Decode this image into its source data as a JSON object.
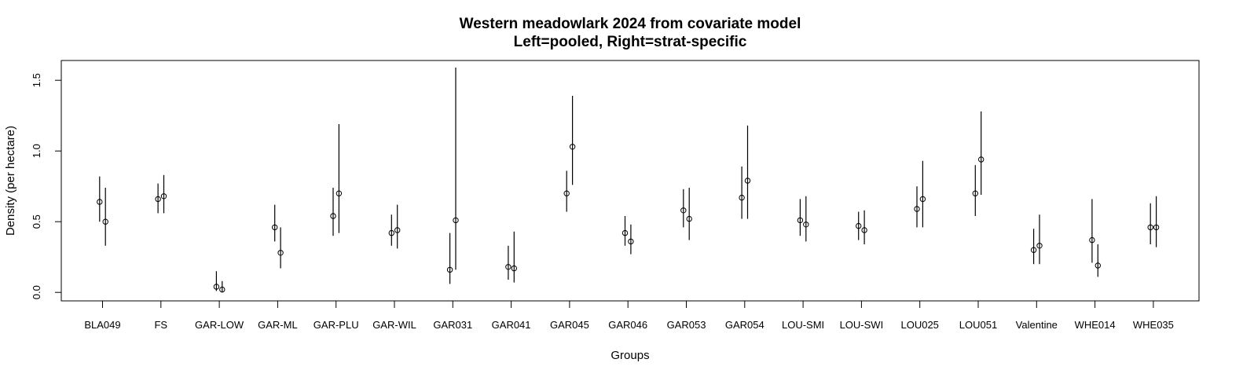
{
  "chart_data": {
    "type": "errorbar",
    "title": "Western meadowlark 2024 from covariate model",
    "subtitle": "Left=pooled, Right=strat-specific",
    "xlabel": "Groups",
    "ylabel": "Density (per hectare)",
    "ylim": [
      -0.06,
      1.64
    ],
    "yticks": [
      "0.0",
      "0.5",
      "1.0",
      "1.5"
    ],
    "grid": false,
    "categories": [
      "BLA049",
      "FS",
      "GAR-LOW",
      "GAR-ML",
      "GAR-PLU",
      "GAR-WIL",
      "GAR031",
      "GAR041",
      "GAR045",
      "GAR046",
      "GAR053",
      "GAR054",
      "LOU-SMI",
      "LOU-SWI",
      "LOU025",
      "LOU051",
      "Valentine",
      "WHE014",
      "WHE035"
    ],
    "series": [
      {
        "name": "pooled",
        "values": [
          0.64,
          0.66,
          0.04,
          0.46,
          0.54,
          0.42,
          0.16,
          0.18,
          0.7,
          0.42,
          0.58,
          0.67,
          0.51,
          0.47,
          0.59,
          0.7,
          0.3,
          0.37,
          0.46
        ],
        "lower": [
          0.5,
          0.56,
          0.01,
          0.36,
          0.4,
          0.33,
          0.06,
          0.09,
          0.57,
          0.33,
          0.46,
          0.52,
          0.4,
          0.37,
          0.46,
          0.54,
          0.2,
          0.21,
          0.34
        ],
        "upper": [
          0.82,
          0.77,
          0.15,
          0.62,
          0.74,
          0.55,
          0.42,
          0.33,
          0.86,
          0.54,
          0.73,
          0.89,
          0.66,
          0.57,
          0.75,
          0.9,
          0.45,
          0.66,
          0.63
        ]
      },
      {
        "name": "strat-specific",
        "values": [
          0.5,
          0.68,
          0.02,
          0.28,
          0.7,
          0.44,
          0.51,
          0.17,
          1.03,
          0.36,
          0.52,
          0.79,
          0.48,
          0.44,
          0.66,
          0.94,
          0.33,
          0.19,
          0.46
        ],
        "lower": [
          0.33,
          0.56,
          0.0,
          0.17,
          0.42,
          0.31,
          0.16,
          0.07,
          0.76,
          0.27,
          0.37,
          0.52,
          0.36,
          0.34,
          0.46,
          0.69,
          0.2,
          0.11,
          0.32
        ],
        "upper": [
          0.74,
          0.83,
          0.08,
          0.46,
          1.19,
          0.62,
          1.59,
          0.43,
          1.39,
          0.48,
          0.74,
          1.18,
          0.68,
          0.58,
          0.93,
          1.28,
          0.55,
          0.34,
          0.68
        ]
      }
    ]
  }
}
